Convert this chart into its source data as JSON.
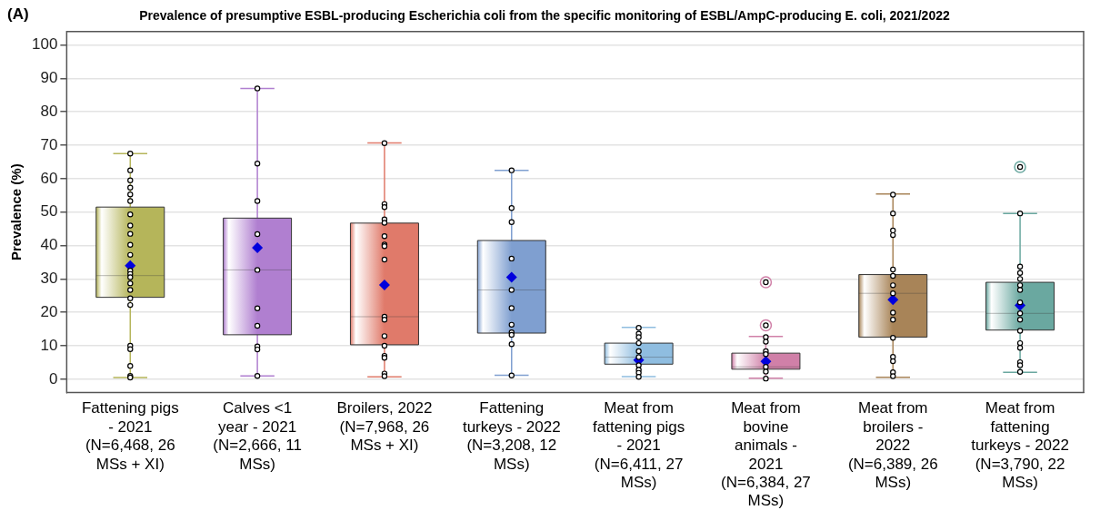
{
  "chart_data": {
    "type": "box",
    "title": "Prevalence of presumptive ESBL-producing Escherichia coli from the specific monitoring of ESBL/AmpC-producing E. coli, 2021/2022",
    "annotations": [
      "(A)"
    ],
    "ylabel": "Prevalence (%)",
    "categories": [
      "Fattening pigs - 2021 (N=6,468, 26 MSs + XI)",
      "Calves <1 year - 2021 (N=2,666, 11 MSs)",
      "Broilers, 2022 (N=7,968, 26 MSs + XI)",
      "Fattening turkeys - 2022 (N=3,208, 12 MSs)",
      "Meat from fattening pigs - 2021 (N=6,411, 27 MSs)",
      "Meat from bovine animals - 2021 (N=6,384, 27 MSs)",
      "Meat from broilers - 2022 (N=6,389, 26 MSs)",
      "Meat from fattening turkeys - 2022 (N=3,790, 22 MSs)"
    ],
    "colors": [
      "#b5b55a",
      "#b07fd0",
      "#e07a6a",
      "#7f9fd0",
      "#8fbde0",
      "#d080a8",
      "#a88458",
      "#6aa8a0"
    ],
    "boxes": [
      {
        "low": 0.5,
        "q1": 24.5,
        "median": 31,
        "q3": 51.5,
        "high": 67.5,
        "mean": 34
      },
      {
        "low": 1,
        "q1": 13.3,
        "median": 32.7,
        "q3": 48.2,
        "high": 87,
        "mean": 39.3
      },
      {
        "low": 0.7,
        "q1": 10.3,
        "median": 18.7,
        "q3": 46.7,
        "high": 70.7,
        "mean": 28.2
      },
      {
        "low": 1.2,
        "q1": 13.8,
        "median": 26.7,
        "q3": 41.5,
        "high": 62.5,
        "mean": 30.5
      },
      {
        "low": 0.8,
        "q1": 4.5,
        "median": 6.6,
        "q3": 10.8,
        "high": 15.5,
        "mean": 5.7
      },
      {
        "low": 0.3,
        "q1": 3,
        "median": 3.7,
        "q3": 7.8,
        "high": 12.8,
        "mean": 5.3,
        "outliers": [
          16.1,
          29
        ]
      },
      {
        "low": 0.6,
        "q1": 12.6,
        "median": 25.7,
        "q3": 31.3,
        "high": 55.4,
        "mean": 23.8
      },
      {
        "low": 2.1,
        "q1": 14.7,
        "median": 19.7,
        "q3": 29,
        "high": 49.6,
        "mean": 22.1,
        "outliers": [
          63.5
        ]
      }
    ],
    "series": [
      {
        "type": "scatter",
        "color": "#000000",
        "x": [
          "Fattening pigs - 2021 (N=6,468, 26 MSs + XI)",
          "Fattening pigs - 2021 (N=6,468, 26 MSs + XI)",
          "Fattening pigs - 2021 (N=6,468, 26 MSs + XI)",
          "Fattening pigs - 2021 (N=6,468, 26 MSs + XI)",
          "Fattening pigs - 2021 (N=6,468, 26 MSs + XI)",
          "Fattening pigs - 2021 (N=6,468, 26 MSs + XI)",
          "Fattening pigs - 2021 (N=6,468, 26 MSs + XI)",
          "Fattening pigs - 2021 (N=6,468, 26 MSs + XI)",
          "Fattening pigs - 2021 (N=6,468, 26 MSs + XI)",
          "Fattening pigs - 2021 (N=6,468, 26 MSs + XI)",
          "Fattening pigs - 2021 (N=6,468, 26 MSs + XI)",
          "Fattening pigs - 2021 (N=6,468, 26 MSs + XI)",
          "Fattening pigs - 2021 (N=6,468, 26 MSs + XI)",
          "Fattening pigs - 2021 (N=6,468, 26 MSs + XI)",
          "Fattening pigs - 2021 (N=6,468, 26 MSs + XI)",
          "Fattening pigs - 2021 (N=6,468, 26 MSs + XI)",
          "Fattening pigs - 2021 (N=6,468, 26 MSs + XI)",
          "Fattening pigs - 2021 (N=6,468, 26 MSs + XI)",
          "Fattening pigs - 2021 (N=6,468, 26 MSs + XI)",
          "Fattening pigs - 2021 (N=6,468, 26 MSs + XI)",
          "Fattening pigs - 2021 (N=6,468, 26 MSs + XI)",
          "Fattening pigs - 2021 (N=6,468, 26 MSs + XI)",
          "Fattening pigs - 2021 (N=6,468, 26 MSs + XI)",
          "Calves <1 year - 2021 (N=2,666, 11 MSs)",
          "Calves <1 year - 2021 (N=2,666, 11 MSs)",
          "Calves <1 year - 2021 (N=2,666, 11 MSs)",
          "Calves <1 year - 2021 (N=2,666, 11 MSs)",
          "Calves <1 year - 2021 (N=2,666, 11 MSs)",
          "Calves <1 year - 2021 (N=2,666, 11 MSs)",
          "Calves <1 year - 2021 (N=2,666, 11 MSs)",
          "Calves <1 year - 2021 (N=2,666, 11 MSs)",
          "Calves <1 year - 2021 (N=2,666, 11 MSs)",
          "Calves <1 year - 2021 (N=2,666, 11 MSs)",
          "Broilers, 2022 (N=7,968, 26 MSs + XI)",
          "Broilers, 2022 (N=7,968, 26 MSs + XI)",
          "Broilers, 2022 (N=7,968, 26 MSs + XI)",
          "Broilers, 2022 (N=7,968, 26 MSs + XI)",
          "Broilers, 2022 (N=7,968, 26 MSs + XI)",
          "Broilers, 2022 (N=7,968, 26 MSs + XI)",
          "Broilers, 2022 (N=7,968, 26 MSs + XI)",
          "Broilers, 2022 (N=7,968, 26 MSs + XI)",
          "Broilers, 2022 (N=7,968, 26 MSs + XI)",
          "Broilers, 2022 (N=7,968, 26 MSs + XI)",
          "Broilers, 2022 (N=7,968, 26 MSs + XI)",
          "Broilers, 2022 (N=7,968, 26 MSs + XI)",
          "Broilers, 2022 (N=7,968, 26 MSs + XI)",
          "Broilers, 2022 (N=7,968, 26 MSs + XI)",
          "Broilers, 2022 (N=7,968, 26 MSs + XI)",
          "Broilers, 2022 (N=7,968, 26 MSs + XI)",
          "Broilers, 2022 (N=7,968, 26 MSs + XI)",
          "Fattening turkeys - 2022 (N=3,208, 12 MSs)",
          "Fattening turkeys - 2022 (N=3,208, 12 MSs)",
          "Fattening turkeys - 2022 (N=3,208, 12 MSs)",
          "Fattening turkeys - 2022 (N=3,208, 12 MSs)",
          "Fattening turkeys - 2022 (N=3,208, 12 MSs)",
          "Fattening turkeys - 2022 (N=3,208, 12 MSs)",
          "Fattening turkeys - 2022 (N=3,208, 12 MSs)",
          "Fattening turkeys - 2022 (N=3,208, 12 MSs)",
          "Fattening turkeys - 2022 (N=3,208, 12 MSs)",
          "Fattening turkeys - 2022 (N=3,208, 12 MSs)",
          "Fattening turkeys - 2022 (N=3,208, 12 MSs)",
          "Meat from fattening pigs - 2021 (N=6,411, 27 MSs)",
          "Meat from fattening pigs - 2021 (N=6,411, 27 MSs)",
          "Meat from fattening pigs - 2021 (N=6,411, 27 MSs)",
          "Meat from fattening pigs - 2021 (N=6,411, 27 MSs)",
          "Meat from fattening pigs - 2021 (N=6,411, 27 MSs)",
          "Meat from fattening pigs - 2021 (N=6,411, 27 MSs)",
          "Meat from fattening pigs - 2021 (N=6,411, 27 MSs)",
          "Meat from fattening pigs - 2021 (N=6,411, 27 MSs)",
          "Meat from fattening pigs - 2021 (N=6,411, 27 MSs)",
          "Meat from fattening pigs - 2021 (N=6,411, 27 MSs)",
          "Meat from bovine animals - 2021 (N=6,384, 27 MSs)",
          "Meat from bovine animals - 2021 (N=6,384, 27 MSs)",
          "Meat from bovine animals - 2021 (N=6,384, 27 MSs)",
          "Meat from bovine animals - 2021 (N=6,384, 27 MSs)",
          "Meat from bovine animals - 2021 (N=6,384, 27 MSs)",
          "Meat from bovine animals - 2021 (N=6,384, 27 MSs)",
          "Meat from bovine animals - 2021 (N=6,384, 27 MSs)",
          "Meat from broilers - 2022 (N=6,389, 26 MSs)",
          "Meat from broilers - 2022 (N=6,389, 26 MSs)",
          "Meat from broilers - 2022 (N=6,389, 26 MSs)",
          "Meat from broilers - 2022 (N=6,389, 26 MSs)",
          "Meat from broilers - 2022 (N=6,389, 26 MSs)",
          "Meat from broilers - 2022 (N=6,389, 26 MSs)",
          "Meat from broilers - 2022 (N=6,389, 26 MSs)",
          "Meat from broilers - 2022 (N=6,389, 26 MSs)",
          "Meat from broilers - 2022 (N=6,389, 26 MSs)",
          "Meat from broilers - 2022 (N=6,389, 26 MSs)",
          "Meat from broilers - 2022 (N=6,389, 26 MSs)",
          "Meat from broilers - 2022 (N=6,389, 26 MSs)",
          "Meat from broilers - 2022 (N=6,389, 26 MSs)",
          "Meat from broilers - 2022 (N=6,389, 26 MSs)",
          "Meat from broilers - 2022 (N=6,389, 26 MSs)",
          "Meat from fattening turkeys - 2022 (N=3,790, 22 MSs)",
          "Meat from fattening turkeys - 2022 (N=3,790, 22 MSs)",
          "Meat from fattening turkeys - 2022 (N=3,790, 22 MSs)",
          "Meat from fattening turkeys - 2022 (N=3,790, 22 MSs)",
          "Meat from fattening turkeys - 2022 (N=3,790, 22 MSs)",
          "Meat from fattening turkeys - 2022 (N=3,790, 22 MSs)",
          "Meat from fattening turkeys - 2022 (N=3,790, 22 MSs)",
          "Meat from fattening turkeys - 2022 (N=3,790, 22 MSs)",
          "Meat from fattening turkeys - 2022 (N=3,790, 22 MSs)",
          "Meat from fattening turkeys - 2022 (N=3,790, 22 MSs)",
          "Meat from fattening turkeys - 2022 (N=3,790, 22 MSs)",
          "Meat from fattening turkeys - 2022 (N=3,790, 22 MSs)",
          "Meat from fattening turkeys - 2022 (N=3,790, 22 MSs)",
          "Meat from fattening turkeys - 2022 (N=3,790, 22 MSs)",
          "Meat from fattening turkeys - 2022 (N=3,790, 22 MSs)"
        ],
        "values": [
          67.5,
          62.5,
          59.5,
          57.3,
          55.3,
          53.3,
          49.3,
          46,
          43.5,
          40.2,
          37.2,
          32.5,
          31.5,
          30.5,
          28.7,
          26.7,
          24.2,
          22.2,
          10,
          9,
          4,
          1,
          0.5,
          87,
          64.5,
          53.3,
          43.4,
          32.7,
          21.2,
          16,
          9.8,
          8.9,
          1,
          70.6,
          52.4,
          51.5,
          47.8,
          46.8,
          42.8,
          40.3,
          39.8,
          35.8,
          18.7,
          17.8,
          12.9,
          10,
          7,
          6.4,
          1.7,
          0.9,
          62.5,
          51.2,
          47,
          36.1,
          26.7,
          21.3,
          16.3,
          14,
          13.3,
          10.5,
          1.1,
          15.4,
          13.6,
          12.6,
          10.8,
          8.4,
          6.6,
          4.2,
          2.8,
          1.9,
          0.7,
          12.6,
          11.2,
          8.4,
          7.5,
          3.7,
          2.3,
          0.2,
          55.2,
          49.6,
          44.5,
          43.1,
          32.8,
          30.9,
          28.1,
          25.7,
          19.9,
          17.8,
          12.4,
          6.7,
          5.4,
          2.1,
          0.9,
          49.6,
          33.7,
          31.8,
          30,
          28.1,
          26.7,
          23,
          19.7,
          17.8,
          14.5,
          10.8,
          9.4,
          5.1,
          4.2,
          2.2
        ]
      }
    ],
    "marker": "circle",
    "ylim": [
      -4,
      104
    ],
    "yticks": [
      0,
      10,
      20,
      30,
      40,
      50,
      60,
      70,
      80,
      90,
      100
    ],
    "grid": "y",
    "legend": false
  }
}
